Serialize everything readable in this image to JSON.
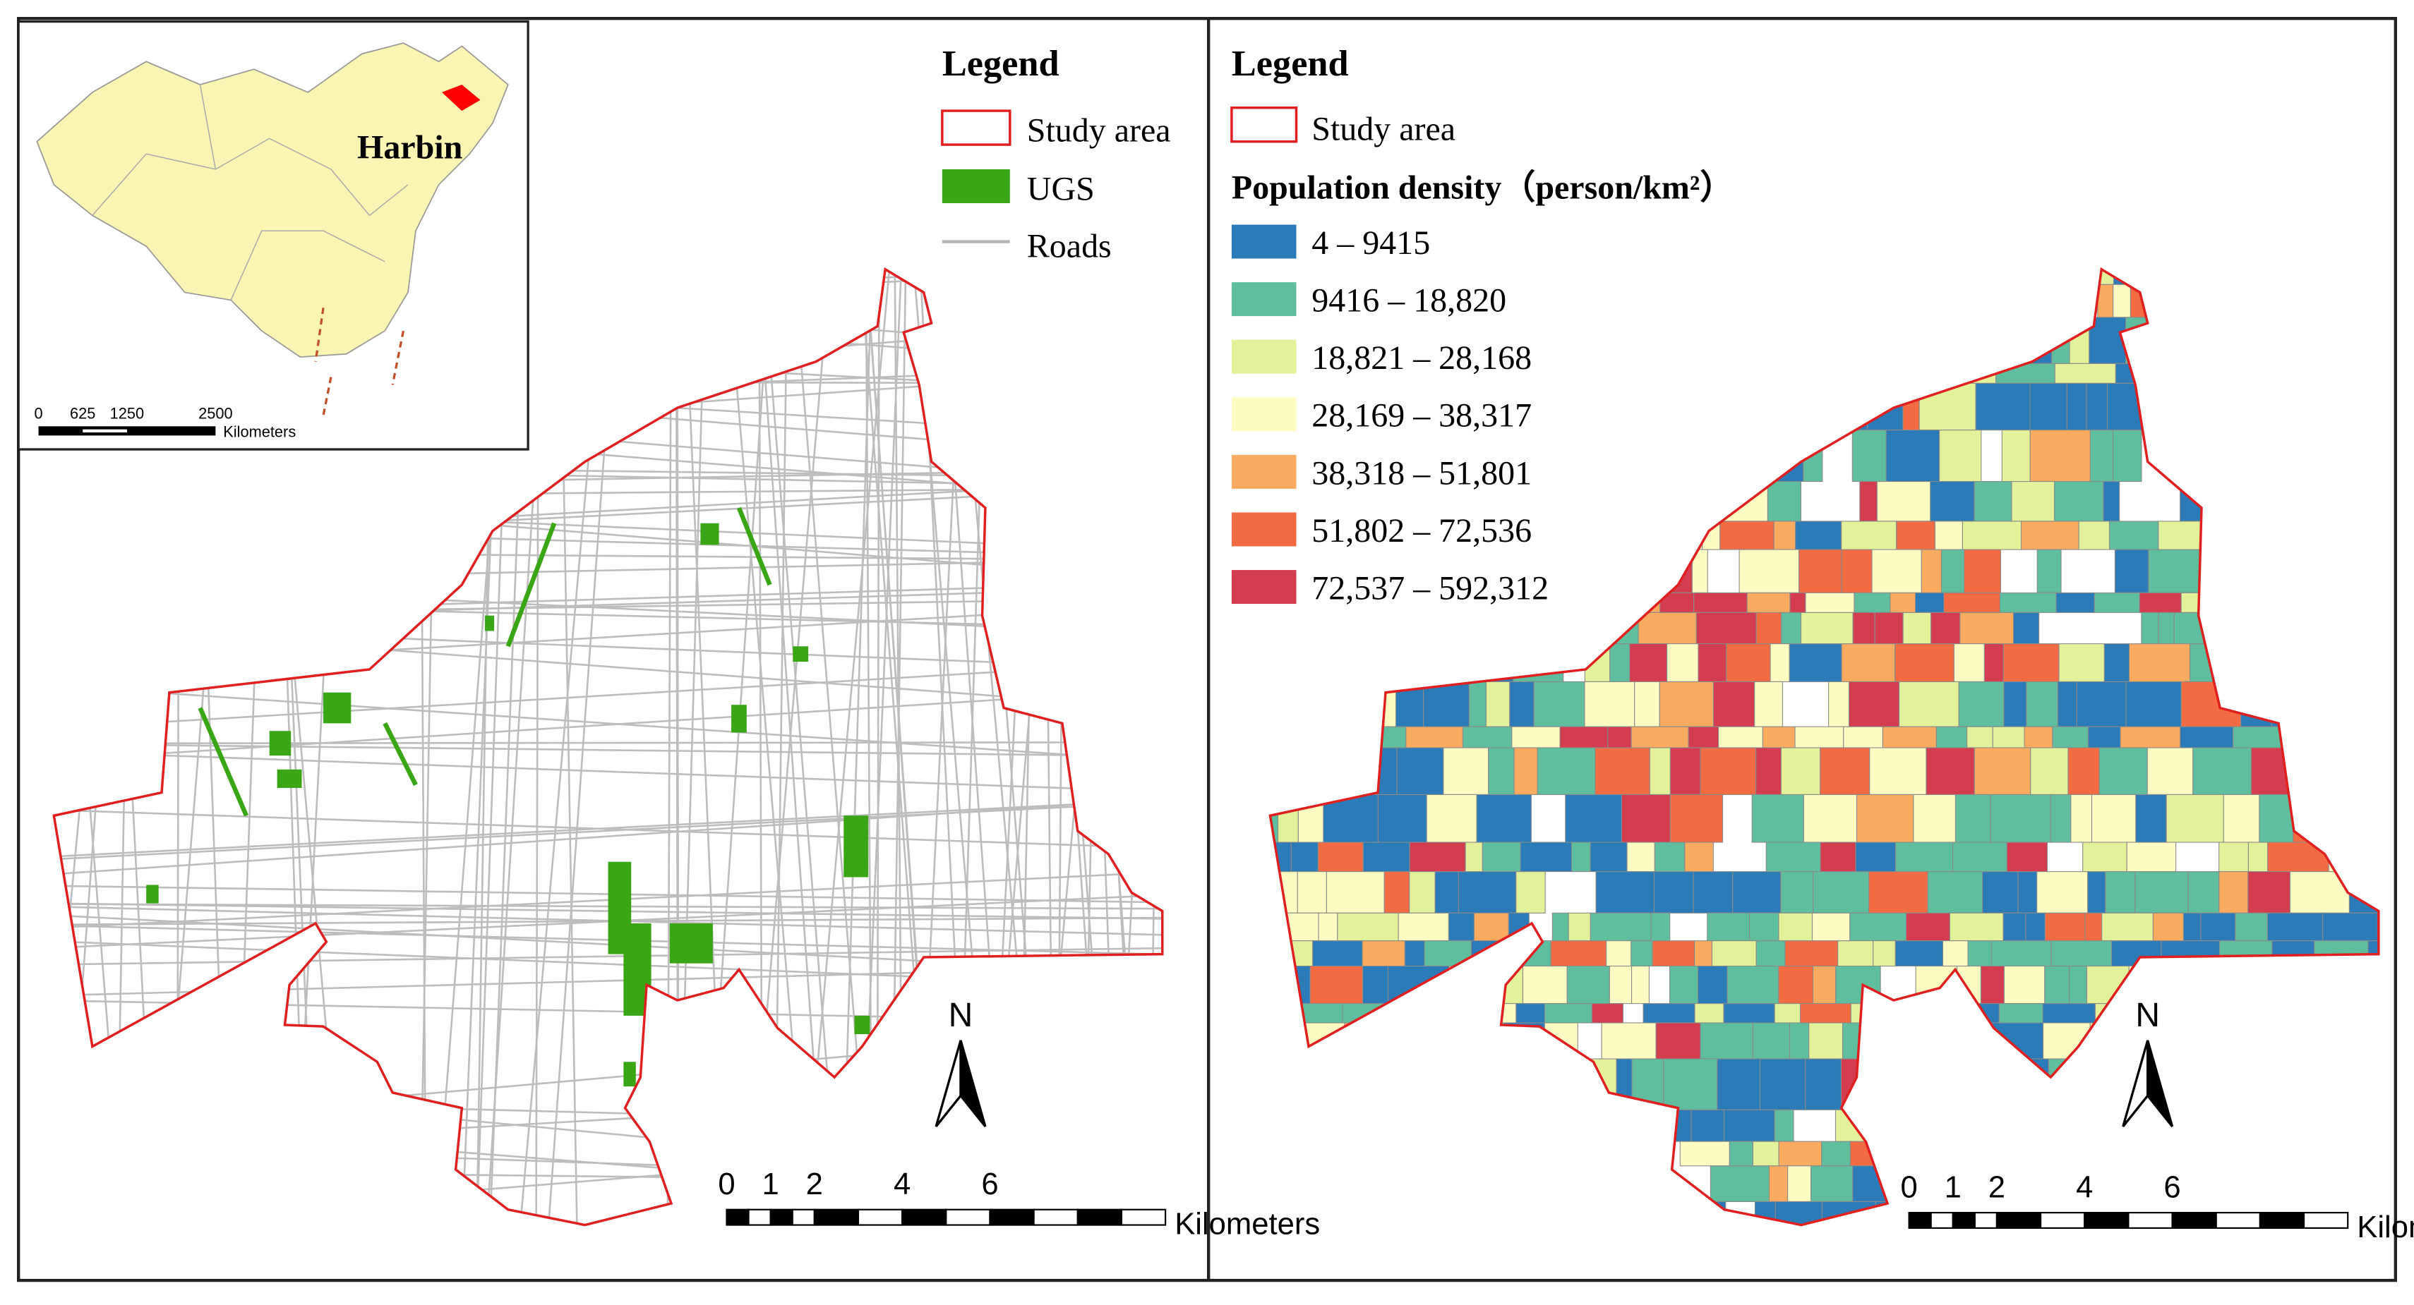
{
  "inset": {
    "place": "Harbin",
    "scale_ticks": [
      0,
      625,
      1250,
      2500
    ],
    "scale_unit": "Kilometers"
  },
  "left_panel": {
    "legend": {
      "title": "Legend",
      "items": [
        "Study area",
        "UGS",
        "Roads"
      ]
    },
    "north": "N",
    "scale_ticks": [
      0,
      1,
      2,
      4,
      6
    ],
    "scale_unit": "Kilometers"
  },
  "right_panel": {
    "legend": {
      "title": "Legend",
      "study_area": "Study area",
      "subtitle": "Population density（person/km²）",
      "classes": [
        {
          "label": "4 – 9415",
          "color": "#2b7bb9"
        },
        {
          "label": "9416 – 18,820",
          "color": "#5fbe9e"
        },
        {
          "label": "18,821 – 28,168",
          "color": "#e3f29a"
        },
        {
          "label": "28,169 – 38,317",
          "color": "#fdfbc2"
        },
        {
          "label": "38,318 – 51,801",
          "color": "#fbab5f"
        },
        {
          "label": "51,802 – 72,536",
          "color": "#f26b42"
        },
        {
          "label": "72,537 – 592,312",
          "color": "#d43d50"
        }
      ]
    },
    "north": "N",
    "scale_ticks": [
      0,
      1,
      2,
      4,
      6
    ],
    "scale_unit": "Kilometers"
  }
}
